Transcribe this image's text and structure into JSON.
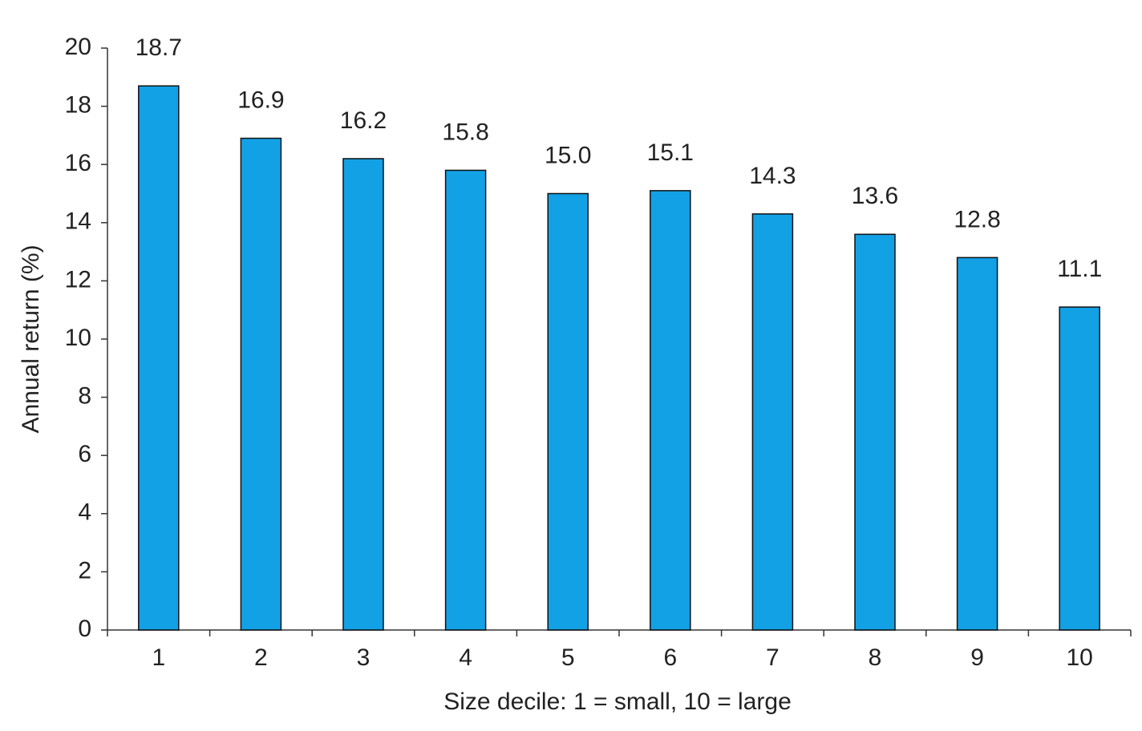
{
  "chart_data": {
    "type": "bar",
    "x_label": "Size decile: 1 = small, 10 = large",
    "y_label": "Annual return (%)",
    "categories": [
      "1",
      "2",
      "3",
      "4",
      "5",
      "6",
      "7",
      "8",
      "9",
      "10"
    ],
    "values": [
      18.7,
      16.9,
      16.2,
      15.8,
      15.0,
      15.1,
      14.3,
      13.6,
      12.8,
      11.1
    ],
    "value_labels": [
      "18.7",
      "16.9",
      "16.2",
      "15.8",
      "15.0",
      "15.1",
      "14.3",
      "13.6",
      "12.8",
      "11.1"
    ],
    "color": "#13a1e6",
    "ylim": [
      0,
      20
    ],
    "yticks": [
      0,
      2,
      4,
      6,
      8,
      10,
      12,
      14,
      16,
      18,
      20
    ],
    "grid": false
  }
}
